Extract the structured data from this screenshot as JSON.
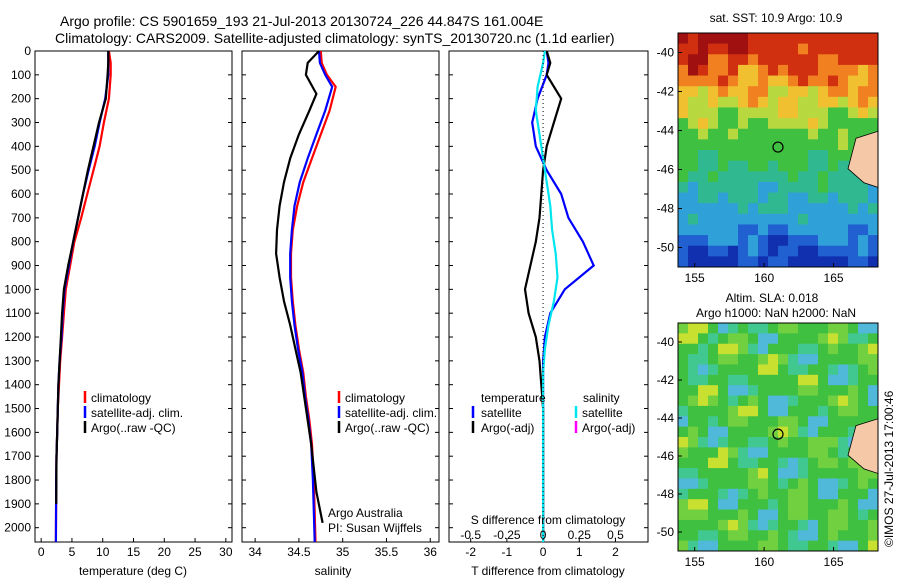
{
  "header": {
    "line1": "Argo profile: CS 5901659_193 21-Jul-2013 20130724_226 44.847S 161.004E",
    "line2": "Climatology: CARS2009. Satellite-adjusted climatology: synTS_20130720.nc (1.1d earlier)"
  },
  "colors": {
    "climatology": "#ff0000",
    "satellite": "#0000ff",
    "argo": "#000000",
    "salinity_satellite": "#00e5ee",
    "salinity_argo": "#ff00ff"
  },
  "chart_data": [
    {
      "type": "line",
      "name": "temperature-profile",
      "xlabel": "temperature (deg C)",
      "ylabel": "",
      "xlim": [
        -1,
        31
      ],
      "ylim": [
        2060,
        0
      ],
      "xticks": [
        "0",
        "5",
        "10",
        "15",
        "20",
        "25",
        "30"
      ],
      "yticks": [
        "0",
        "100",
        "200",
        "300",
        "400",
        "500",
        "600",
        "700",
        "800",
        "900",
        "1000",
        "1100",
        "1200",
        "1300",
        "1400",
        "1500",
        "1600",
        "1700",
        "1800",
        "1900",
        "2000"
      ],
      "legend": {
        "position": "lower-right",
        "entries": [
          "climatology",
          "satellite-adj. clim.",
          "Argo(..raw -QC)"
        ]
      },
      "series": [
        {
          "name": "climatology",
          "color": "#ff0000",
          "x": [
            11,
            11.3,
            11.3,
            11.0,
            10.2,
            9.5,
            8.5,
            7.5,
            6.5,
            5.4,
            4.7,
            4.0,
            3.7,
            3.4,
            3.1,
            2.9,
            2.7,
            2.6,
            2.5,
            2.45,
            2.4
          ],
          "y": [
            0,
            50,
            100,
            200,
            300,
            400,
            500,
            600,
            700,
            800,
            900,
            1000,
            1100,
            1200,
            1300,
            1400,
            1500,
            1600,
            1700,
            1800,
            2060
          ]
        },
        {
          "name": "satellite-adj. clim.",
          "color": "#0000ff",
          "x": [
            10.9,
            10.9,
            10.9,
            10.4,
            9.5,
            8.7,
            7.7,
            6.8,
            6.0,
            5.2,
            4.5,
            3.8,
            3.5,
            3.3,
            3.0,
            2.8,
            2.7,
            2.6,
            2.5,
            2.45,
            2.4
          ],
          "y": [
            0,
            50,
            100,
            200,
            300,
            400,
            500,
            600,
            700,
            800,
            900,
            1000,
            1100,
            1200,
            1300,
            1400,
            1500,
            1600,
            1700,
            1800,
            2060
          ]
        },
        {
          "name": "Argo(..raw -QC)",
          "color": "#000000",
          "x": [
            10.9,
            10.9,
            10.8,
            10.5,
            9.4,
            8.5,
            7.6,
            6.8,
            6.0,
            5.2,
            4.4,
            3.7,
            3.4,
            3.2,
            3.0,
            2.8,
            2.7,
            2.6,
            2.5,
            2.45
          ],
          "y": [
            0,
            50,
            100,
            200,
            300,
            400,
            500,
            600,
            700,
            800,
            900,
            1000,
            1100,
            1200,
            1300,
            1400,
            1500,
            1600,
            1700,
            1900
          ]
        }
      ]
    },
    {
      "type": "line",
      "name": "salinity-profile",
      "xlabel": "salinity",
      "xlim": [
        33.85,
        36.1
      ],
      "ylim": [
        2060,
        0
      ],
      "xticks": [
        "34",
        "34.5",
        "35",
        "35.5",
        "36"
      ],
      "legend": {
        "position": "lower-right",
        "entries": [
          "climatology",
          "satellite-adj. clim.",
          "Argo(..raw -QC)"
        ]
      },
      "annotation": [
        "Argo Australia",
        "PI: Susan Wijffels"
      ],
      "series": [
        {
          "name": "climatology",
          "color": "#ff0000",
          "x": [
            34.75,
            34.76,
            34.82,
            34.92,
            34.85,
            34.75,
            34.65,
            34.55,
            34.48,
            34.43,
            34.41,
            34.41,
            34.43,
            34.46,
            34.5,
            34.55,
            34.58,
            34.62,
            34.65,
            34.67,
            34.69
          ],
          "y": [
            0,
            50,
            100,
            150,
            250,
            350,
            450,
            550,
            650,
            750,
            850,
            950,
            1050,
            1150,
            1250,
            1350,
            1450,
            1550,
            1650,
            1800,
            2060
          ]
        },
        {
          "name": "satellite-adj. clim.",
          "color": "#0000ff",
          "x": [
            34.73,
            34.74,
            34.8,
            34.88,
            34.8,
            34.7,
            34.6,
            34.51,
            34.45,
            34.42,
            34.4,
            34.4,
            34.42,
            34.45,
            34.49,
            34.54,
            34.57,
            34.61,
            34.64,
            34.66,
            34.68
          ],
          "y": [
            0,
            50,
            100,
            150,
            250,
            350,
            450,
            550,
            650,
            750,
            850,
            950,
            1050,
            1150,
            1250,
            1350,
            1450,
            1550,
            1650,
            1800,
            2060
          ]
        },
        {
          "name": "Argo(..raw -QC)",
          "color": "#000000",
          "x": [
            34.73,
            34.6,
            34.58,
            34.7,
            34.62,
            34.5,
            34.4,
            34.33,
            34.28,
            34.25,
            34.24,
            34.28,
            34.33,
            34.4,
            34.46,
            34.52,
            34.56,
            34.6,
            34.64,
            34.7,
            34.77
          ],
          "y": [
            0,
            50,
            100,
            180,
            250,
            350,
            450,
            550,
            650,
            750,
            850,
            950,
            1050,
            1150,
            1250,
            1350,
            1450,
            1550,
            1650,
            1850,
            1980
          ]
        }
      ]
    },
    {
      "type": "line",
      "name": "difference-profile",
      "xlabel": "T difference from climatology",
      "top_label": "S difference from climatology",
      "xlim": [
        -2.6,
        2.9
      ],
      "ylim": [
        2060,
        0
      ],
      "xticks": [
        "-2",
        "-1",
        "0",
        "1",
        "2"
      ],
      "top_xticks": [
        "-0.5",
        "-0.25",
        "0",
        "0.25",
        "0.5"
      ],
      "legend_left": {
        "title": "temperature",
        "entries": [
          "satellite",
          "Argo(-adj)"
        ]
      },
      "legend_right": {
        "title": "salinity",
        "entries": [
          "satellite",
          "Argo(-adj)"
        ]
      },
      "series": [
        {
          "name": "temperature satellite",
          "color": "#0000ff",
          "x": [
            0.1,
            0.15,
            0.1,
            -0.15,
            -0.3,
            -0.2,
            0.1,
            0.5,
            0.7,
            1.1,
            1.4,
            0.6,
            0.2,
            0.05,
            0.0,
            0.0,
            0.0,
            0.0,
            0.0,
            0.0
          ],
          "y": [
            0,
            50,
            100,
            200,
            300,
            400,
            500,
            600,
            700,
            800,
            900,
            1000,
            1100,
            1200,
            1300,
            1400,
            1500,
            1600,
            1800,
            2060
          ]
        },
        {
          "name": "temperature Argo(-adj)",
          "color": "#000000",
          "x": [
            0.1,
            0.2,
            0.1,
            0.5,
            0.3,
            0.1,
            0.0,
            -0.05,
            -0.1,
            -0.2,
            -0.35,
            -0.5,
            -0.4,
            -0.2,
            -0.1,
            -0.05,
            0.0,
            0.0,
            0.0,
            0.0
          ],
          "y": [
            0,
            50,
            100,
            200,
            300,
            400,
            500,
            600,
            700,
            800,
            900,
            1000,
            1100,
            1200,
            1300,
            1400,
            1500,
            1600,
            1800,
            2060
          ]
        },
        {
          "name": "salinity satellite",
          "color": "#00e5ee",
          "x": [
            0.05,
            0.0,
            -0.15,
            -0.2,
            -0.1,
            0.0,
            0.1,
            0.2,
            0.25,
            0.35,
            0.4,
            0.3,
            0.15,
            0.05,
            0.0,
            0.0,
            0.0,
            0.0,
            0.0
          ],
          "y": [
            0,
            50,
            150,
            250,
            350,
            450,
            550,
            650,
            750,
            850,
            950,
            1050,
            1150,
            1250,
            1350,
            1500,
            1650,
            1800,
            2060
          ]
        }
      ]
    },
    {
      "type": "heatmap",
      "name": "sst-map",
      "title": "sat. SST: 10.9 Argo: 10.9",
      "xticks": [
        "155",
        "160",
        "165"
      ],
      "yticks": [
        "-40",
        "-42",
        "-44",
        "-46",
        "-48",
        "-50"
      ],
      "xlim": [
        153.8,
        168.2
      ],
      "ylim": [
        -51,
        -39
      ],
      "marker": {
        "lon": 161.0,
        "lat": -44.85
      }
    },
    {
      "type": "heatmap",
      "name": "sla-map",
      "title": "Altim. SLA: 0.018",
      "subtitle": "Argo h1000: NaN h2000: NaN",
      "xticks": [
        "155",
        "160",
        "165"
      ],
      "yticks": [
        "-40",
        "-42",
        "-44",
        "-46",
        "-48",
        "-50"
      ],
      "xlim": [
        153.8,
        168.2
      ],
      "ylim": [
        -51,
        -39
      ],
      "marker": {
        "lon": 161.0,
        "lat": -44.85
      }
    }
  ],
  "side_stamp": "©IMOS 27-Jul-2013 17:00:46"
}
